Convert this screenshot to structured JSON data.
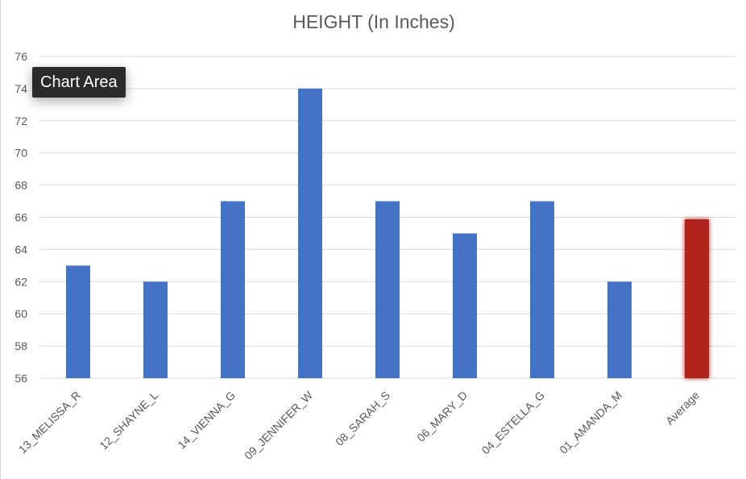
{
  "tooltip": {
    "text": "Chart Area"
  },
  "chart_data": {
    "type": "bar",
    "title": "HEIGHT (In Inches)",
    "categories": [
      "13_MELISSA_R",
      "12_SHAYNE_L",
      "14_VIENNA_G",
      "09_JENNIFER_W",
      "08_SARAH_S",
      "06_MARY_D",
      "04_ESTELLA_G",
      "01_AMANDA_M",
      "Average"
    ],
    "values": [
      63,
      62,
      67,
      74,
      67,
      65,
      67,
      62,
      65.875
    ],
    "ylim": [
      56,
      76
    ],
    "yticks": [
      56,
      58,
      60,
      62,
      64,
      66,
      68,
      70,
      72,
      74,
      76
    ],
    "grid": true,
    "legend": "none",
    "colors": {
      "bar": "#4472C4",
      "highlight": "#B0201A",
      "grid": "#D9D9D9",
      "text": "#595959"
    },
    "highlight_category": "Average"
  }
}
